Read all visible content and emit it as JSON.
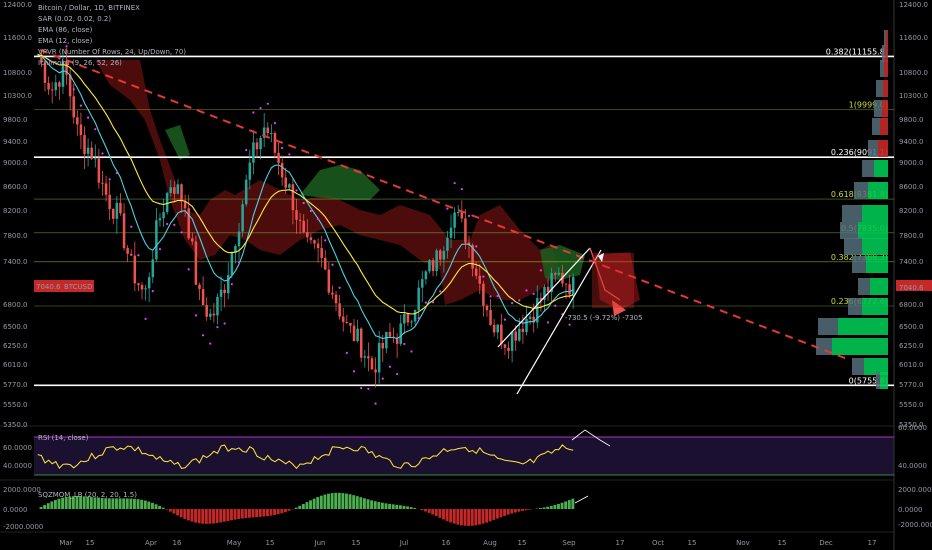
{
  "header": {
    "title": "Bitcoin / Dollar, 1D, BITFINEX",
    "indicators": [
      "SAR (0.02, 0.02, 0.2)",
      "EMA (86, close)",
      "EMA (12, close)",
      "VPVR (Number Of Rows, 24, Up/Down, 70)",
      "Ichimoku (9, 26, 52, 26)"
    ]
  },
  "price_badge": {
    "value": "7040.6",
    "symbol": "BTCUSD"
  },
  "measure_label": "-730.5 (-9.72%) -7305",
  "rsi": {
    "label": "RSI (14, close)",
    "ticks": [
      "60.0000",
      "40.0000"
    ]
  },
  "mom": {
    "label": "SQZMOM_LB (20, 2, 20, 1.5)",
    "ticks": [
      "2000.0000",
      "0.0000",
      "-2000.0000"
    ]
  },
  "colors": {
    "bull": "#26a69a",
    "bear": "#ef5350",
    "ema_slow": "#ffeb3b",
    "ema_fast": "#4dd0e1",
    "sar": "#e040fb",
    "trend_line": "#e53935",
    "rsi_band": "#2a1740",
    "rsi_line": "#ffeb3b"
  },
  "chart_data": {
    "type": "line",
    "title": "Bitcoin / Dollar, 1D, BITFINEX",
    "x_ticks": [
      "Mar",
      "15",
      "Apr",
      "16",
      "May",
      "15",
      "Jun",
      "15",
      "Jul",
      "16",
      "Aug",
      "15",
      "Sep",
      "17",
      "Oct",
      "15",
      "Nov",
      "15",
      "Dec",
      "17"
    ],
    "y_ticks": [
      12400,
      11600,
      10800,
      10300,
      9800,
      9400,
      9000,
      8600,
      8200,
      7800,
      7400,
      7040.6,
      6800,
      6500,
      6250,
      6010,
      5770,
      5550,
      5350
    ],
    "y_tick_labels": [
      "12400.0",
      "11600.0",
      "10800.0",
      "10300.0",
      "9800.0",
      "9400.0",
      "9000.0",
      "8600.0",
      "8200.0",
      "7800.0",
      "7400.0",
      "7040.6",
      "6800.0",
      "6500.0",
      "6250.0",
      "6010.0",
      "5770.0",
      "5550.0",
      "5350.0"
    ],
    "ylim": [
      5350,
      12400
    ],
    "series": [
      {
        "values": [
          11200,
          10400,
          10900,
          9500,
          9200,
          8500,
          8100,
          7300,
          6900,
          8000,
          8700,
          8300,
          6900,
          6600,
          7100,
          8000,
          9100,
          9700,
          9000,
          8400,
          7600,
          7500,
          7000,
          6500,
          6300,
          5950,
          6300,
          6400,
          6750,
          7200,
          7500,
          8200,
          7800,
          7100,
          6500,
          6300,
          6500,
          6700,
          7000,
          7200,
          7040.6
        ]
      }
    ],
    "fib_levels": [
      {
        "label": "0.382(11155.8)",
        "value": 11155.8
      },
      {
        "label": "1(9999.0)",
        "value": 9999.0
      },
      {
        "label": "0.236(9091.1)",
        "value": 9091.1
      },
      {
        "label": "0.618(8381.8)",
        "value": 8381.8
      },
      {
        "label": "0.5(7835.0)",
        "value": 7835.0
      },
      {
        "label": "0.382(7388.3)",
        "value": 7388.3
      },
      {
        "label": "0.236(6772.6)",
        "value": 6772.6
      },
      {
        "label": "0(5755.8)",
        "value": 5755.8
      }
    ]
  }
}
